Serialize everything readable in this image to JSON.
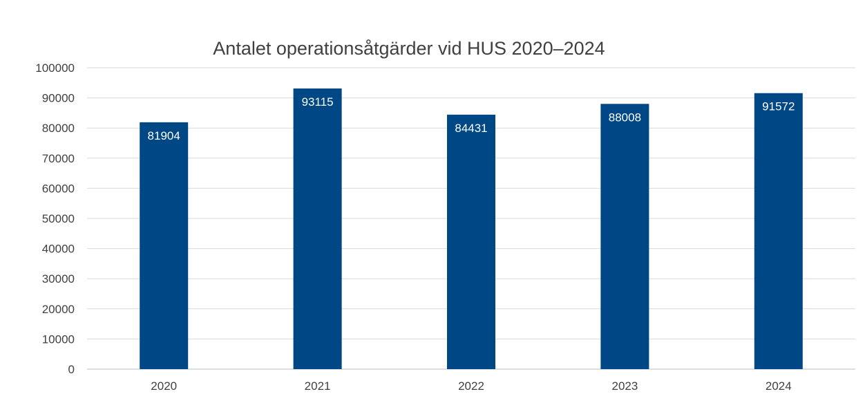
{
  "chart_data": {
    "type": "bar",
    "title": "Antalet operationsåtgärder vid HUS 2020–2024",
    "categories": [
      "2020",
      "2021",
      "2022",
      "2023",
      "2024"
    ],
    "values": [
      81904,
      93115,
      84431,
      88008,
      91572
    ],
    "data_labels": [
      "81904",
      "93115",
      "84431",
      "88008",
      "91572"
    ],
    "yticks": [
      "0",
      "10000",
      "20000",
      "30000",
      "40000",
      "50000",
      "60000",
      "70000",
      "80000",
      "90000",
      "100000"
    ],
    "ylim": [
      0,
      100000
    ],
    "xlabel": "",
    "ylabel": "",
    "grid": true,
    "bar_color": "#004785"
  }
}
